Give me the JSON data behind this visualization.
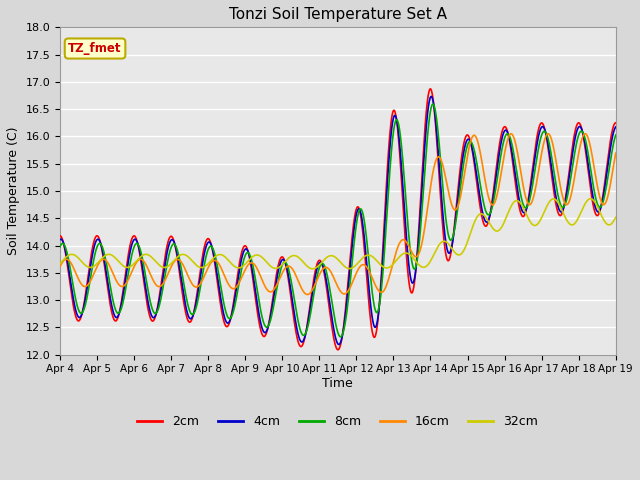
{
  "title": "Tonzi Soil Temperature Set A",
  "xlabel": "Time",
  "ylabel": "Soil Temperature (C)",
  "ylim": [
    12.0,
    18.0
  ],
  "yticks": [
    12.0,
    12.5,
    13.0,
    13.5,
    14.0,
    14.5,
    15.0,
    15.5,
    16.0,
    16.5,
    17.0,
    17.5,
    18.0
  ],
  "xtick_labels": [
    "Apr 4",
    "Apr 5",
    "Apr 6",
    "Apr 7",
    "Apr 8",
    "Apr 9",
    "Apr 10",
    "Apr 11",
    "Apr 12",
    "Apr 13",
    "Apr 14",
    "Apr 15",
    "Apr 16",
    "Apr 17",
    "Apr 18",
    "Apr 19"
  ],
  "legend_label": "TZ_fmet",
  "legend_bg": "#ffffcc",
  "legend_border": "#bbaa00",
  "series_colors": [
    "#ff0000",
    "#0000cc",
    "#00aa00",
    "#ff8800",
    "#cccc00"
  ],
  "series_labels": [
    "2cm",
    "4cm",
    "8cm",
    "16cm",
    "32cm"
  ],
  "bg_color": "#e8e8e8",
  "grid_color": "#ffffff",
  "fig_width": 6.4,
  "fig_height": 4.8,
  "dpi": 100
}
